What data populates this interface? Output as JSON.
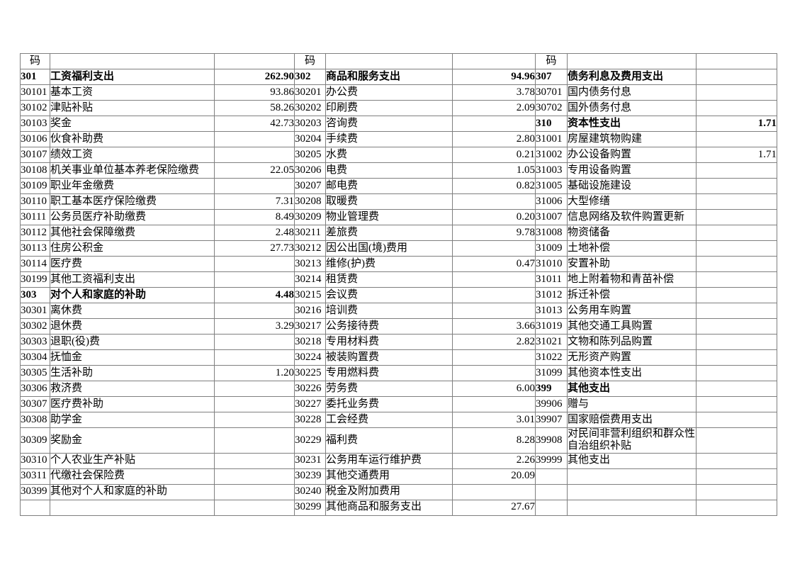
{
  "page": {
    "background": "#ffffff",
    "grid_line_color": "#7f7f7f",
    "text_color": "#000000"
  },
  "table": {
    "header_code_label": "码",
    "groups": [
      {
        "rows": [
          {
            "code": "301",
            "name": "工资福利支出",
            "value": "262.90",
            "category": true
          },
          {
            "code": "30101",
            "name": "基本工资",
            "value": "93.86"
          },
          {
            "code": "30102",
            "name": "津贴补贴",
            "value": "58.26"
          },
          {
            "code": "30103",
            "name": "奖金",
            "value": "42.73"
          },
          {
            "code": "30106",
            "name": "伙食补助费",
            "value": ""
          },
          {
            "code": "30107",
            "name": "绩效工资",
            "value": ""
          },
          {
            "code": "30108",
            "name": "机关事业单位基本养老保险缴费",
            "value": "22.05"
          },
          {
            "code": "30109",
            "name": "职业年金缴费",
            "value": ""
          },
          {
            "code": "30110",
            "name": "职工基本医疗保险缴费",
            "value": "7.31"
          },
          {
            "code": "30111",
            "name": "公务员医疗补助缴费",
            "value": "8.49"
          },
          {
            "code": "30112",
            "name": "其他社会保障缴费",
            "value": "2.48"
          },
          {
            "code": "30113",
            "name": "住房公积金",
            "value": "27.73"
          },
          {
            "code": "30114",
            "name": "医疗费",
            "value": ""
          },
          {
            "code": "30199",
            "name": "其他工资福利支出",
            "value": ""
          },
          {
            "code": "303",
            "name": "对个人和家庭的补助",
            "value": "4.48",
            "category": true
          },
          {
            "code": "30301",
            "name": "离休费",
            "value": ""
          },
          {
            "code": "30302",
            "name": "退休费",
            "value": "3.29"
          },
          {
            "code": "30303",
            "name": "退职(役)费",
            "value": ""
          },
          {
            "code": "30304",
            "name": "抚恤金",
            "value": ""
          },
          {
            "code": "30305",
            "name": "生活补助",
            "value": "1.20"
          },
          {
            "code": "30306",
            "name": "救济费",
            "value": ""
          },
          {
            "code": "30307",
            "name": "医疗费补助",
            "value": ""
          },
          {
            "code": "30308",
            "name": "助学金",
            "value": ""
          },
          {
            "code": "30309",
            "name": "奖励金",
            "value": ""
          },
          {
            "code": "30310",
            "name": "个人农业生产补贴",
            "value": ""
          },
          {
            "code": "30311",
            "name": "代缴社会保险费",
            "value": ""
          },
          {
            "code": "30399",
            "name": "其他对个人和家庭的补助",
            "value": ""
          },
          {
            "code": "",
            "name": "",
            "value": ""
          }
        ]
      },
      {
        "rows": [
          {
            "code": "302",
            "name": "商品和服务支出",
            "value": "94.96",
            "category": true
          },
          {
            "code": "30201",
            "name": "办公费",
            "value": "3.78"
          },
          {
            "code": "30202",
            "name": "印刷费",
            "value": "2.09"
          },
          {
            "code": "30203",
            "name": "咨询费",
            "value": ""
          },
          {
            "code": "30204",
            "name": "手续费",
            "value": "2.80"
          },
          {
            "code": "30205",
            "name": "水费",
            "value": "0.21"
          },
          {
            "code": "30206",
            "name": "电费",
            "value": "1.05"
          },
          {
            "code": "30207",
            "name": "邮电费",
            "value": "0.82"
          },
          {
            "code": "30208",
            "name": "取暖费",
            "value": ""
          },
          {
            "code": "30209",
            "name": "物业管理费",
            "value": "0.20"
          },
          {
            "code": "30211",
            "name": "差旅费",
            "value": "9.78"
          },
          {
            "code": "30212",
            "name": "因公出国(境)费用",
            "value": ""
          },
          {
            "code": "30213",
            "name": "维修(护)费",
            "value": "0.47"
          },
          {
            "code": "30214",
            "name": "租赁费",
            "value": ""
          },
          {
            "code": "30215",
            "name": "会议费",
            "value": ""
          },
          {
            "code": "30216",
            "name": "培训费",
            "value": ""
          },
          {
            "code": "30217",
            "name": "公务接待费",
            "value": "3.66"
          },
          {
            "code": "30218",
            "name": "专用材料费",
            "value": "2.82"
          },
          {
            "code": "30224",
            "name": "被装购置费",
            "value": ""
          },
          {
            "code": "30225",
            "name": "专用燃料费",
            "value": ""
          },
          {
            "code": "30226",
            "name": "劳务费",
            "value": "6.00"
          },
          {
            "code": "30227",
            "name": "委托业务费",
            "value": ""
          },
          {
            "code": "30228",
            "name": "工会经费",
            "value": "3.01"
          },
          {
            "code": "30229",
            "name": "福利费",
            "value": "8.28"
          },
          {
            "code": "30231",
            "name": "公务用车运行维护费",
            "value": "2.26"
          },
          {
            "code": "30239",
            "name": "其他交通费用",
            "value": "20.09"
          },
          {
            "code": "30240",
            "name": "税金及附加费用",
            "value": ""
          },
          {
            "code": "30299",
            "name": "其他商品和服务支出",
            "value": "27.67"
          }
        ]
      },
      {
        "rows": [
          {
            "code": "307",
            "name": "债务利息及费用支出",
            "value": "",
            "category": true
          },
          {
            "code": "30701",
            "name": "国内债务付息",
            "value": ""
          },
          {
            "code": "30702",
            "name": "国外债务付息",
            "value": ""
          },
          {
            "code": "310",
            "name": "资本性支出",
            "value": "1.71",
            "category": true
          },
          {
            "code": "31001",
            "name": "房屋建筑物购建",
            "value": ""
          },
          {
            "code": "31002",
            "name": "办公设备购置",
            "value": "1.71"
          },
          {
            "code": "31003",
            "name": "专用设备购置",
            "value": ""
          },
          {
            "code": "31005",
            "name": "基础设施建设",
            "value": ""
          },
          {
            "code": "31006",
            "name": "大型修缮",
            "value": ""
          },
          {
            "code": "31007",
            "name": "信息网络及软件购置更新",
            "value": ""
          },
          {
            "code": "31008",
            "name": "物资储备",
            "value": ""
          },
          {
            "code": "31009",
            "name": "土地补偿",
            "value": ""
          },
          {
            "code": "31010",
            "name": "安置补助",
            "value": ""
          },
          {
            "code": "31011",
            "name": "地上附着物和青苗补偿",
            "value": ""
          },
          {
            "code": "31012",
            "name": "拆迁补偿",
            "value": ""
          },
          {
            "code": "31013",
            "name": "公务用车购置",
            "value": ""
          },
          {
            "code": "31019",
            "name": "其他交通工具购置",
            "value": ""
          },
          {
            "code": "31021",
            "name": "文物和陈列品购置",
            "value": ""
          },
          {
            "code": "31022",
            "name": "无形资产购置",
            "value": ""
          },
          {
            "code": "31099",
            "name": "其他资本性支出",
            "value": ""
          },
          {
            "code": "399",
            "name": "其他支出",
            "value": "",
            "category": true
          },
          {
            "code": "39906",
            "name": "赠与",
            "value": ""
          },
          {
            "code": "39907",
            "name": "国家赔偿费用支出",
            "value": ""
          },
          {
            "code": "39908",
            "name": "对民间非营利组织和群众性自治组织补贴",
            "value": ""
          },
          {
            "code": "39999",
            "name": "其他支出",
            "value": ""
          },
          {
            "code": "",
            "name": "",
            "value": ""
          },
          {
            "code": "",
            "name": "",
            "value": ""
          },
          {
            "code": "",
            "name": "",
            "value": ""
          }
        ]
      }
    ]
  }
}
